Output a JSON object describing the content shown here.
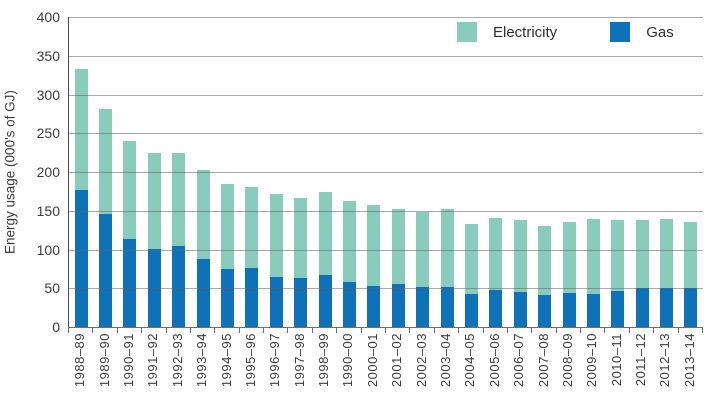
{
  "chart_data": {
    "type": "bar",
    "stacked": true,
    "title": "",
    "xlabel": "",
    "ylabel": "Energy usage (000's of GJ)",
    "ylim": [
      0,
      400
    ],
    "yticks": [
      0,
      50,
      100,
      150,
      200,
      250,
      300,
      350,
      400
    ],
    "grid": true,
    "legend_position": "top-right-inside",
    "categories": [
      "1988–89",
      "1989–90",
      "1990–91",
      "1991–92",
      "1992–93",
      "1993–94",
      "1994–95",
      "1995–96",
      "1996–97",
      "1997–98",
      "1998–99",
      "1990–00",
      "2000–01",
      "2001–02",
      "2002–03",
      "2003–04",
      "2004–05",
      "2005–06",
      "2006–07",
      "2007–08",
      "2008–09",
      "2009–10",
      "2010–11",
      "2011–12",
      "2012–13",
      "2013–14"
    ],
    "series": [
      {
        "name": "Gas",
        "color": "#0f72b8",
        "values": [
          177,
          146,
          113,
          101,
          105,
          88,
          75,
          76,
          65,
          63,
          67,
          58,
          53,
          55,
          52,
          52,
          43,
          48,
          45,
          41,
          44,
          43,
          46,
          50,
          51,
          50
        ]
      },
      {
        "name": "Electricity",
        "color": "#8accbb",
        "values": [
          156,
          135,
          127,
          123,
          120,
          115,
          110,
          105,
          107,
          104,
          107,
          104,
          104,
          97,
          96,
          100,
          90,
          93,
          93,
          89,
          92,
          96,
          92,
          88,
          89,
          86
        ]
      }
    ],
    "totals": [
      333,
      281,
      240,
      224,
      225,
      203,
      185,
      181,
      172,
      167,
      174,
      162,
      157,
      152,
      148,
      152,
      133,
      141,
      138,
      130,
      136,
      139,
      138,
      138,
      140,
      136
    ]
  },
  "legend": {
    "items": [
      {
        "label": "Electricity",
        "color": "#8accbb"
      },
      {
        "label": "Gas",
        "color": "#0f72b8"
      }
    ]
  },
  "colors": {
    "electricity": "#8accbb",
    "gas": "#0f72b8",
    "gridline": "#8c8c8c",
    "axis_line": "#4a4a4a",
    "axis_text": "#3d3d3d"
  }
}
